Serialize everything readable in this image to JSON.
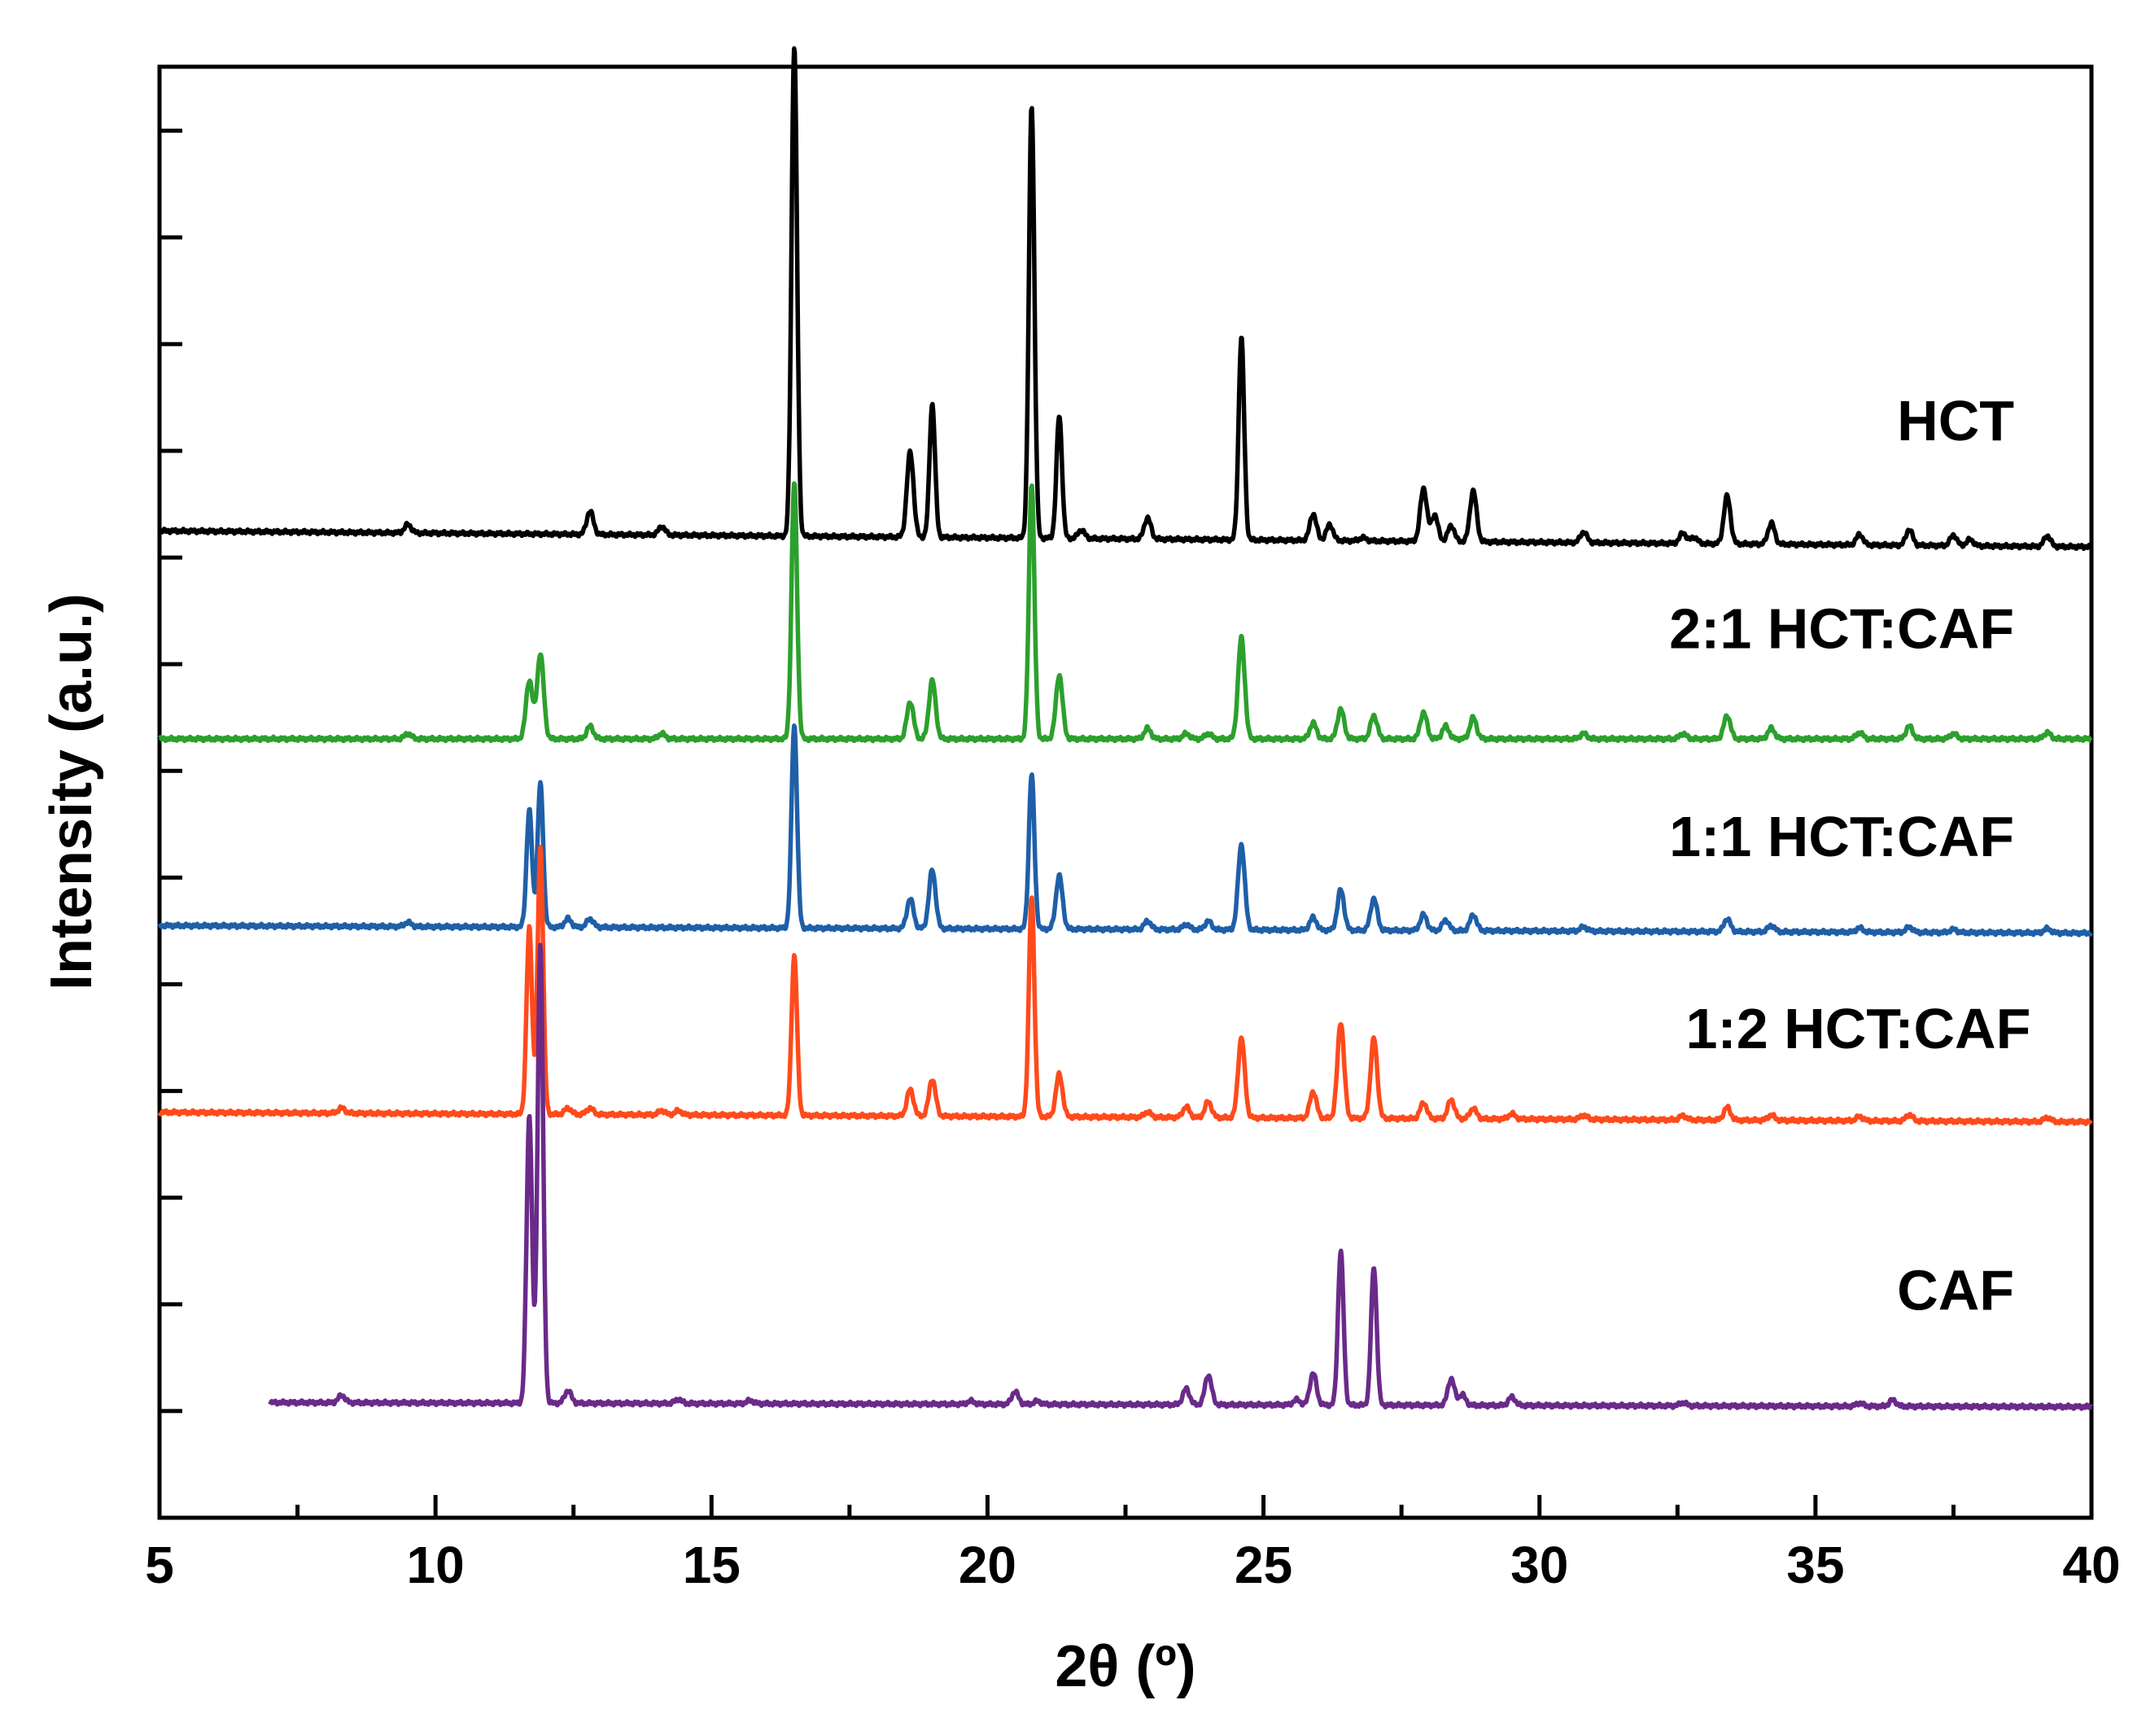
{
  "chart_data": {
    "type": "line",
    "title": "",
    "xlabel": "2θ (º)",
    "ylabel": "Intensity (a.u.)",
    "xlim": [
      5,
      40
    ],
    "ylim": [
      -1.0,
      12.6
    ],
    "x_ticks": [
      5,
      10,
      15,
      20,
      25,
      30,
      35,
      40
    ],
    "x_tick_labels": [
      "5",
      "10",
      "15",
      "20",
      "25",
      "30",
      "35",
      "40"
    ],
    "y_tick_labels_shown": false,
    "grid": false,
    "legend": "none",
    "series": [
      {
        "name": "HCT",
        "color": "#000000",
        "x_start": 5,
        "offset": 8.1,
        "baseline_start": 0.15,
        "baseline_end": 0.0,
        "peaks": [
          [
            9.5,
            0.08
          ],
          [
            12.8,
            0.22
          ],
          [
            14.1,
            0.08
          ],
          [
            16.5,
            4.6
          ],
          [
            18.6,
            0.8
          ],
          [
            19.0,
            1.25
          ],
          [
            20.8,
            4.05
          ],
          [
            21.3,
            1.15
          ],
          [
            21.7,
            0.08
          ],
          [
            22.9,
            0.2
          ],
          [
            24.6,
            1.9
          ],
          [
            25.9,
            0.25
          ],
          [
            26.2,
            0.15
          ],
          [
            26.8,
            0.03
          ],
          [
            27.9,
            0.5
          ],
          [
            28.1,
            0.25
          ],
          [
            28.4,
            0.15
          ],
          [
            28.8,
            0.48
          ],
          [
            30.8,
            0.1
          ],
          [
            32.6,
            0.1
          ],
          [
            32.8,
            0.06
          ],
          [
            33.4,
            0.45
          ],
          [
            34.2,
            0.2
          ],
          [
            35.8,
            0.1
          ],
          [
            36.7,
            0.15
          ],
          [
            37.5,
            0.1
          ],
          [
            37.8,
            0.06
          ],
          [
            39.2,
            0.1
          ]
        ]
      },
      {
        "name": "2:1 HCT:CAF",
        "color": "#2ca02c",
        "x_start": 5,
        "offset": 6.3,
        "baseline_start": 0.0,
        "baseline_end": 0.0,
        "peaks": [
          [
            9.5,
            0.05
          ],
          [
            11.7,
            0.55
          ],
          [
            11.9,
            0.8
          ],
          [
            12.8,
            0.12
          ],
          [
            14.1,
            0.05
          ],
          [
            16.5,
            2.4
          ],
          [
            18.6,
            0.35
          ],
          [
            19.0,
            0.55
          ],
          [
            20.8,
            2.4
          ],
          [
            21.3,
            0.6
          ],
          [
            22.9,
            0.1
          ],
          [
            23.6,
            0.05
          ],
          [
            24.0,
            0.05
          ],
          [
            24.6,
            0.95
          ],
          [
            25.9,
            0.15
          ],
          [
            26.4,
            0.28
          ],
          [
            27.0,
            0.22
          ],
          [
            27.9,
            0.25
          ],
          [
            28.3,
            0.12
          ],
          [
            28.8,
            0.2
          ],
          [
            30.8,
            0.05
          ],
          [
            32.6,
            0.05
          ],
          [
            33.4,
            0.22
          ],
          [
            34.2,
            0.1
          ],
          [
            35.8,
            0.06
          ],
          [
            36.7,
            0.12
          ],
          [
            37.5,
            0.05
          ],
          [
            39.2,
            0.06
          ]
        ]
      },
      {
        "name": "1:1 HCT:CAF",
        "color": "#1f5fa8",
        "x_start": 5,
        "offset": 4.55,
        "baseline_start": 0.0,
        "baseline_end": -0.07,
        "peaks": [
          [
            9.5,
            0.04
          ],
          [
            11.7,
            1.1
          ],
          [
            11.9,
            1.35
          ],
          [
            12.4,
            0.08
          ],
          [
            12.8,
            0.08
          ],
          [
            16.5,
            1.9
          ],
          [
            18.6,
            0.28
          ],
          [
            19.0,
            0.55
          ],
          [
            20.8,
            1.45
          ],
          [
            21.3,
            0.5
          ],
          [
            22.9,
            0.08
          ],
          [
            23.6,
            0.05
          ],
          [
            24.0,
            0.08
          ],
          [
            24.6,
            0.8
          ],
          [
            25.9,
            0.12
          ],
          [
            26.4,
            0.38
          ],
          [
            27.0,
            0.3
          ],
          [
            27.9,
            0.15
          ],
          [
            28.3,
            0.1
          ],
          [
            28.8,
            0.15
          ],
          [
            30.8,
            0.04
          ],
          [
            33.4,
            0.12
          ],
          [
            34.2,
            0.06
          ],
          [
            35.8,
            0.04
          ],
          [
            36.7,
            0.05
          ],
          [
            37.5,
            0.03
          ],
          [
            39.2,
            0.04
          ]
        ]
      },
      {
        "name": "1:2 HCT:CAF",
        "color": "#ff4a1c",
        "x_start": 5,
        "offset": 2.8,
        "baseline_start": 0.0,
        "baseline_end": -0.09,
        "peaks": [
          [
            8.3,
            0.05
          ],
          [
            11.7,
            1.75
          ],
          [
            11.9,
            2.5
          ],
          [
            12.4,
            0.06
          ],
          [
            12.8,
            0.06
          ],
          [
            14.1,
            0.04
          ],
          [
            14.4,
            0.04
          ],
          [
            16.5,
            1.5
          ],
          [
            18.6,
            0.25
          ],
          [
            19.0,
            0.35
          ],
          [
            20.8,
            2.05
          ],
          [
            21.3,
            0.4
          ],
          [
            22.9,
            0.05
          ],
          [
            23.6,
            0.1
          ],
          [
            24.0,
            0.15
          ],
          [
            24.6,
            0.75
          ],
          [
            25.9,
            0.25
          ],
          [
            26.4,
            0.9
          ],
          [
            27.0,
            0.75
          ],
          [
            27.9,
            0.15
          ],
          [
            28.4,
            0.18
          ],
          [
            28.8,
            0.1
          ],
          [
            29.5,
            0.05
          ],
          [
            30.8,
            0.04
          ],
          [
            32.6,
            0.04
          ],
          [
            33.4,
            0.12
          ],
          [
            34.2,
            0.05
          ],
          [
            35.8,
            0.04
          ],
          [
            36.7,
            0.06
          ],
          [
            39.2,
            0.04
          ]
        ]
      },
      {
        "name": "CAF",
        "color": "#6a2a8a",
        "x_start": 7,
        "offset": 0.08,
        "baseline_start": 0.0,
        "baseline_end": -0.04,
        "peaks": [
          [
            8.3,
            0.07
          ],
          [
            11.7,
            2.7
          ],
          [
            11.9,
            4.3
          ],
          [
            12.4,
            0.12
          ],
          [
            14.4,
            0.04
          ],
          [
            15.7,
            0.03
          ],
          [
            19.7,
            0.03
          ],
          [
            20.5,
            0.12
          ],
          [
            20.9,
            0.03
          ],
          [
            23.6,
            0.15
          ],
          [
            24.0,
            0.28
          ],
          [
            25.6,
            0.05
          ],
          [
            25.9,
            0.3
          ],
          [
            26.4,
            1.45
          ],
          [
            27.0,
            1.3
          ],
          [
            28.4,
            0.25
          ],
          [
            28.6,
            0.1
          ],
          [
            29.5,
            0.08
          ],
          [
            32.6,
            0.03
          ],
          [
            35.8,
            0.03
          ],
          [
            36.4,
            0.06
          ]
        ]
      }
    ],
    "annotations": [
      {
        "text": "HCT",
        "x": 38.6,
        "y": 9.1
      },
      {
        "text": "2:1 HCT:CAF",
        "x": 38.6,
        "y": 7.15
      },
      {
        "text": "1:1 HCT:CAF",
        "x": 38.6,
        "y": 5.2
      },
      {
        "text": "1:2 HCT:CAF",
        "x": 38.9,
        "y": 3.4
      },
      {
        "text": "CAF",
        "x": 38.6,
        "y": 0.95
      }
    ]
  }
}
